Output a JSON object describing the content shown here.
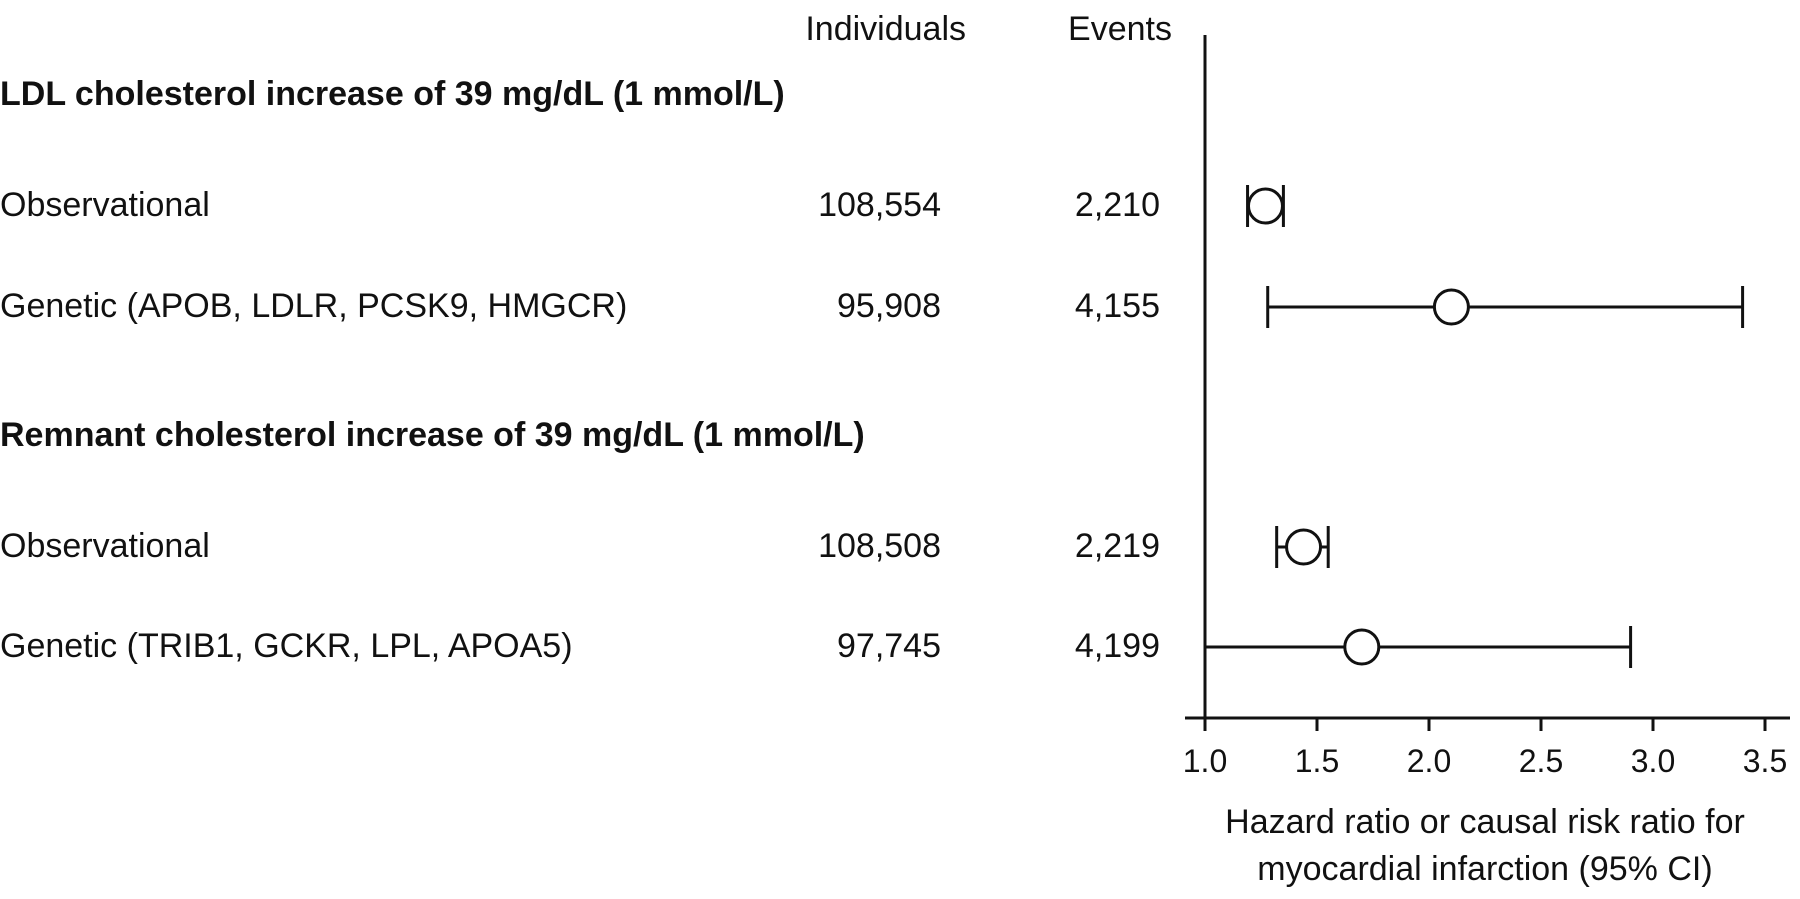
{
  "headers": {
    "individuals": "Individuals",
    "events": "Events"
  },
  "chart_data": {
    "type": "forest",
    "xlabel": [
      "Hazard ratio or causal risk ratio for",
      "myocardial infarction (95% CI)"
    ],
    "xlim": [
      1.0,
      3.5
    ],
    "ticks": [
      "1.0",
      "1.5",
      "2.0",
      "2.5",
      "3.0",
      "3.5"
    ],
    "grid": false,
    "sections": [
      {
        "title": "LDL cholesterol increase of 39 mg/dL (1 mmol/L)",
        "rows": [
          {
            "label": "Observational",
            "individuals": "108,554",
            "events": "2,210",
            "estimate": 1.27,
            "ci_low": 1.19,
            "ci_high": 1.35
          },
          {
            "label": "Genetic (APOB, LDLR, PCSK9, HMGCR)",
            "individuals": "95,908",
            "events": "4,155",
            "estimate": 2.1,
            "ci_low": 1.28,
            "ci_high": 3.4
          }
        ]
      },
      {
        "title": "Remnant cholesterol increase of 39 mg/dL (1 mmol/L)",
        "rows": [
          {
            "label": "Observational",
            "individuals": "108,508",
            "events": "2,219",
            "estimate": 1.44,
            "ci_low": 1.32,
            "ci_high": 1.55
          },
          {
            "label": "Genetic (TRIB1, GCKR, LPL, APOA5)",
            "individuals": "97,745",
            "events": "4,199",
            "estimate": 1.7,
            "ci_low": 1.0,
            "ci_high": 2.9
          }
        ]
      }
    ]
  }
}
